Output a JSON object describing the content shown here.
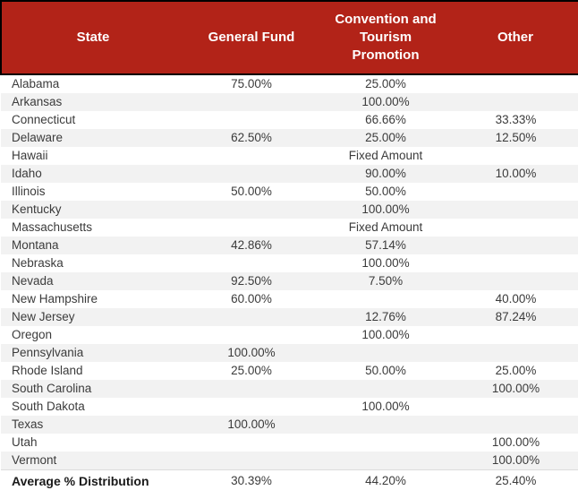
{
  "colors": {
    "header_bg": "#B22318",
    "header_text": "#FFFFFF",
    "header_border": "#000000",
    "stripe": "#F2F2F2",
    "body_text": "#3B3B3B"
  },
  "chart_data": {
    "type": "table",
    "columns": [
      "State",
      "General Fund",
      "Convention and\nTourism\nPromotion",
      "Other"
    ],
    "rows": [
      {
        "state": "Alabama",
        "general_fund": "75.00%",
        "convention": "25.00%",
        "other": ""
      },
      {
        "state": "Arkansas",
        "general_fund": "",
        "convention": "100.00%",
        "other": ""
      },
      {
        "state": "Connecticut",
        "general_fund": "",
        "convention": "66.66%",
        "other": "33.33%"
      },
      {
        "state": "Delaware",
        "general_fund": "62.50%",
        "convention": "25.00%",
        "other": "12.50%"
      },
      {
        "state": "Hawaii",
        "general_fund": "",
        "convention": "Fixed Amount",
        "other": ""
      },
      {
        "state": "Idaho",
        "general_fund": "",
        "convention": "90.00%",
        "other": "10.00%"
      },
      {
        "state": "Illinois",
        "general_fund": "50.00%",
        "convention": "50.00%",
        "other": ""
      },
      {
        "state": "Kentucky",
        "general_fund": "",
        "convention": "100.00%",
        "other": ""
      },
      {
        "state": "Massachusetts",
        "general_fund": "",
        "convention": "Fixed Amount",
        "other": ""
      },
      {
        "state": "Montana",
        "general_fund": "42.86%",
        "convention": "57.14%",
        "other": ""
      },
      {
        "state": "Nebraska",
        "general_fund": "",
        "convention": "100.00%",
        "other": ""
      },
      {
        "state": "Nevada",
        "general_fund": "92.50%",
        "convention": "7.50%",
        "other": ""
      },
      {
        "state": "New Hampshire",
        "general_fund": "60.00%",
        "convention": "",
        "other": "40.00%"
      },
      {
        "state": "New Jersey",
        "general_fund": "",
        "convention": "12.76%",
        "other": "87.24%"
      },
      {
        "state": "Oregon",
        "general_fund": "",
        "convention": "100.00%",
        "other": ""
      },
      {
        "state": "Pennsylvania",
        "general_fund": "100.00%",
        "convention": "",
        "other": ""
      },
      {
        "state": "Rhode Island",
        "general_fund": "25.00%",
        "convention": "50.00%",
        "other": "25.00%"
      },
      {
        "state": "South Carolina",
        "general_fund": "",
        "convention": "",
        "other": "100.00%"
      },
      {
        "state": "South Dakota",
        "general_fund": "",
        "convention": "100.00%",
        "other": ""
      },
      {
        "state": "Texas",
        "general_fund": "100.00%",
        "convention": "",
        "other": ""
      },
      {
        "state": "Utah",
        "general_fund": "",
        "convention": "",
        "other": "100.00%"
      },
      {
        "state": "Vermont",
        "general_fund": "",
        "convention": "",
        "other": "100.00%"
      }
    ],
    "footer": {
      "label": "Average % Distribution",
      "general_fund": "30.39%",
      "convention": "44.20%",
      "other": "25.40%"
    }
  }
}
